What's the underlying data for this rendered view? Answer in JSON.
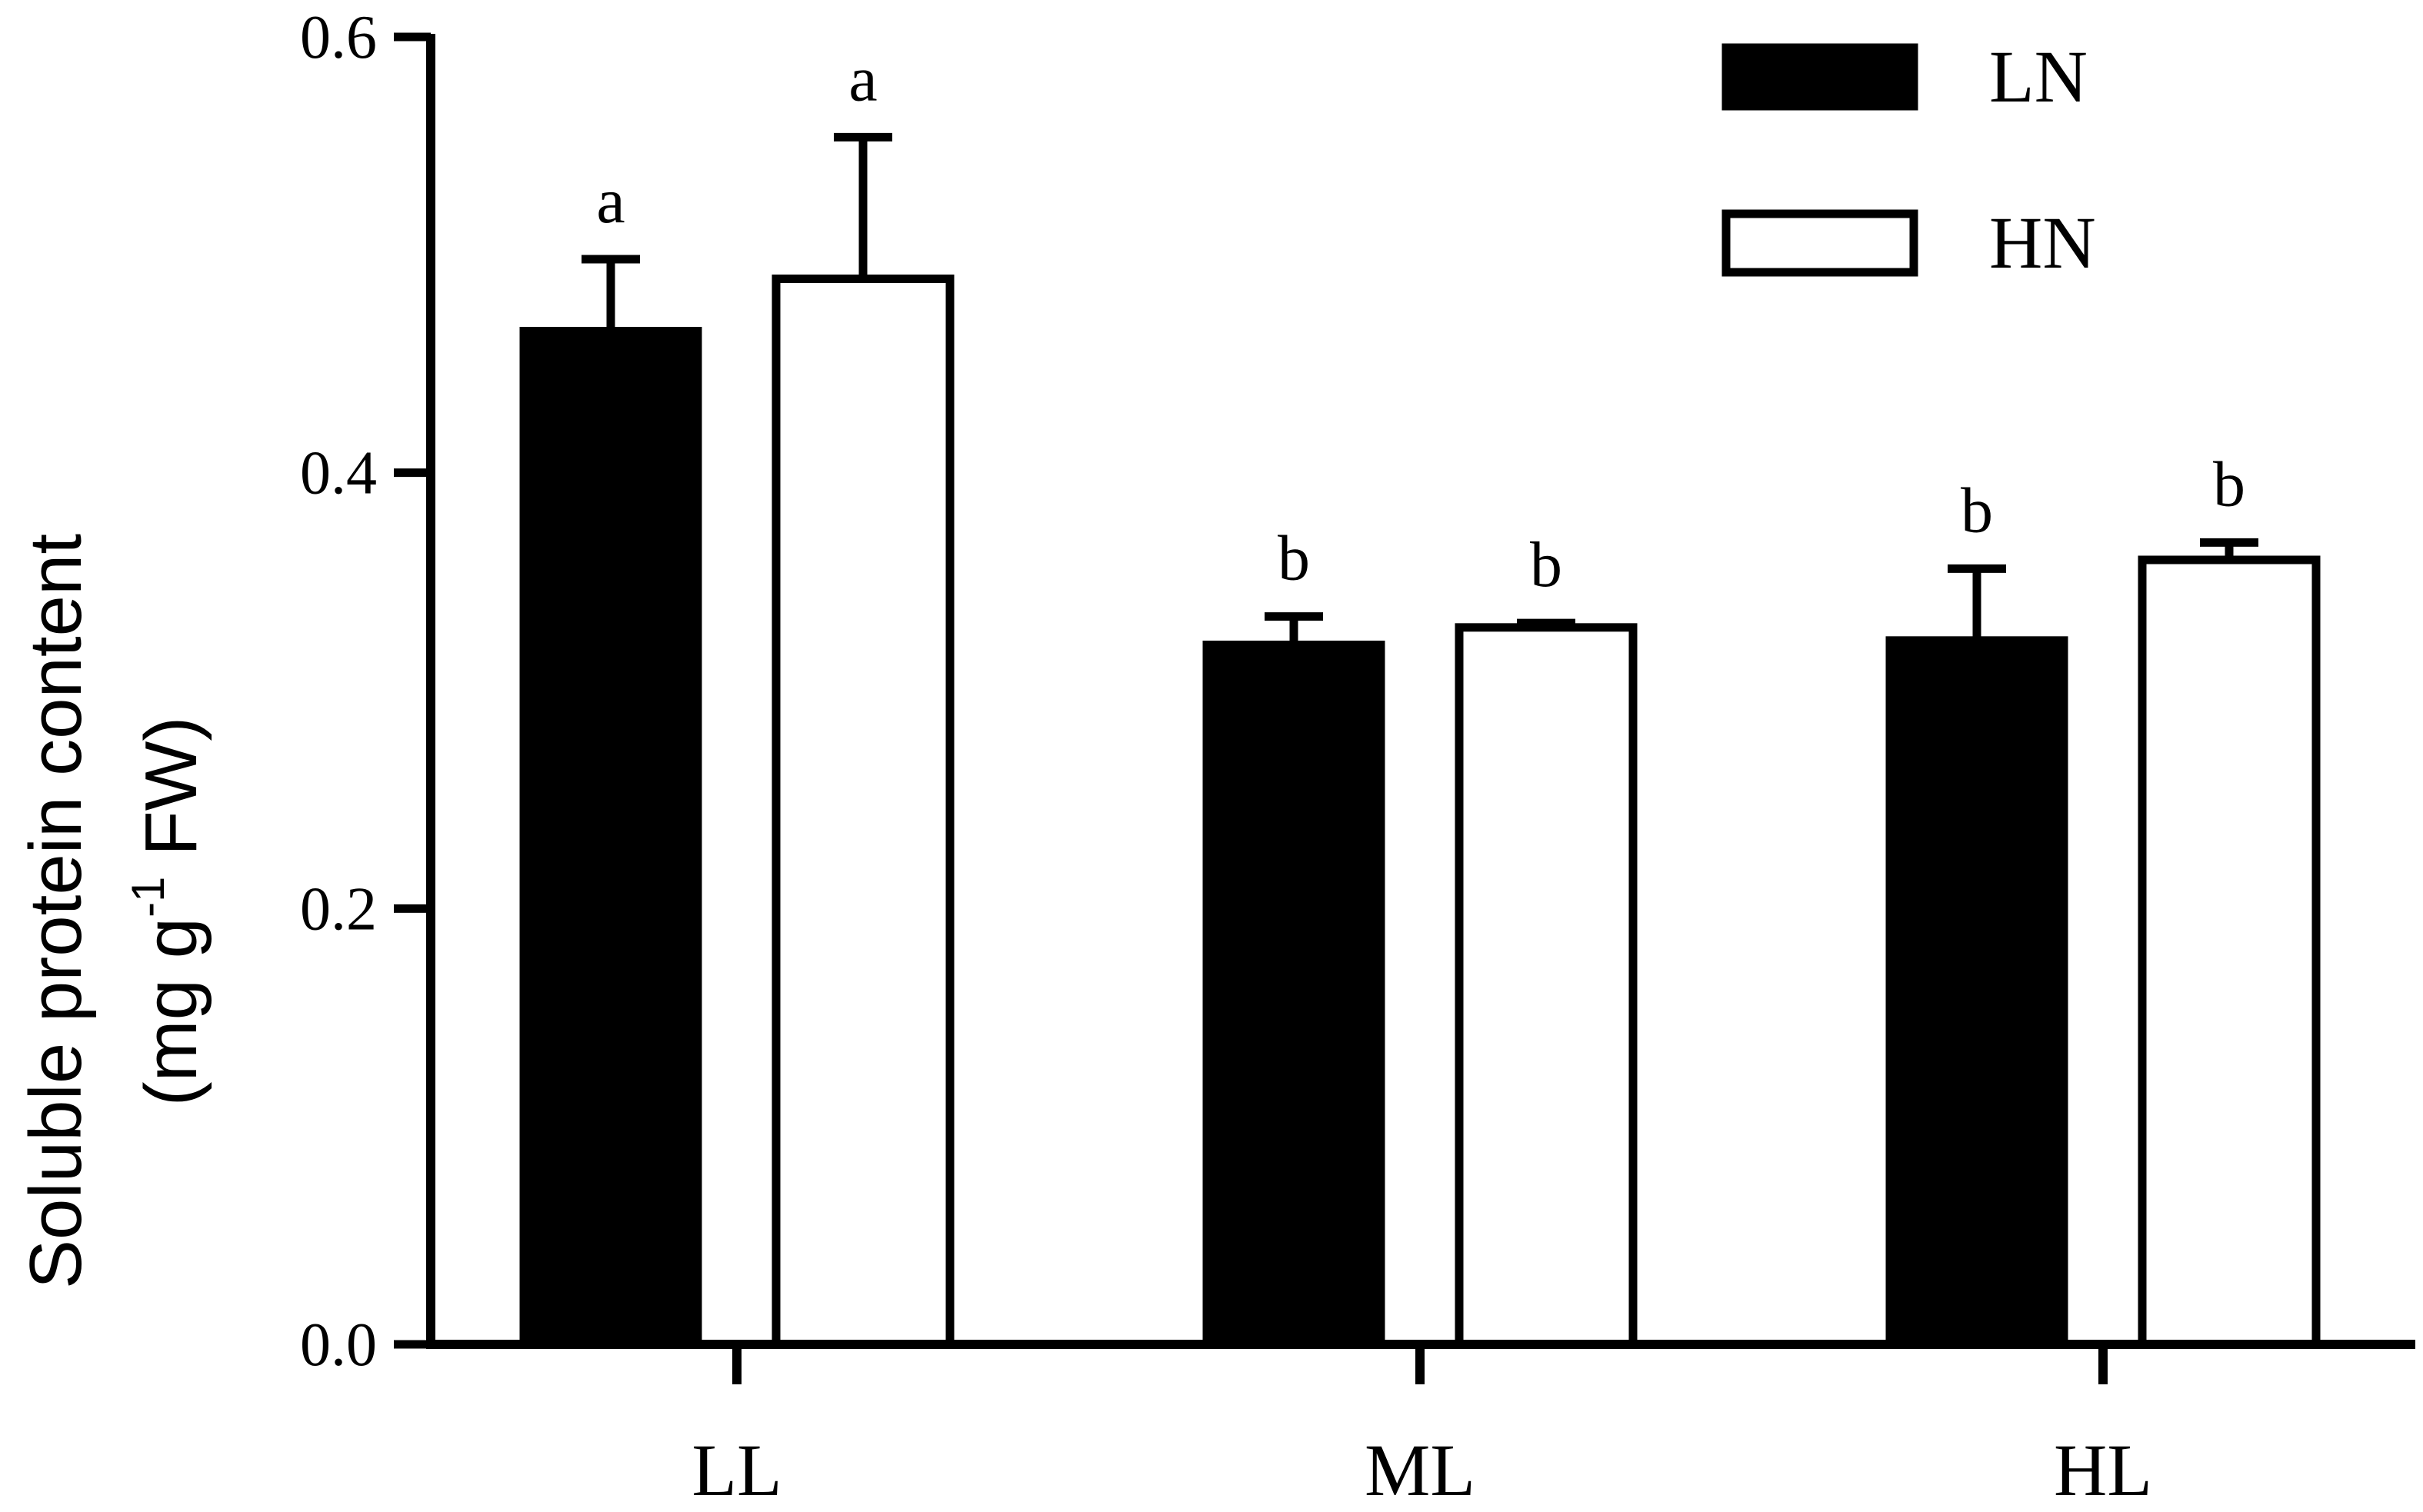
{
  "chart_data": {
    "type": "bar",
    "title": "",
    "xlabel": "",
    "ylabel": {
      "line1": "Soluble protein content",
      "line2_pre": "(mg g",
      "line2_sup": "-1",
      "line2_post": " FW)"
    },
    "ylim": [
      0,
      0.6
    ],
    "yticks": [
      "0.0",
      "0.2",
      "0.4",
      "0.6"
    ],
    "categories": [
      "LL",
      "ML",
      "HL"
    ],
    "legend_position": "top-right",
    "grid": false,
    "series": [
      {
        "name": "LN",
        "fill": "#000000",
        "values": [
          0.465,
          0.321,
          0.323
        ],
        "errors": [
          0.033,
          0.013,
          0.033
        ],
        "letters": [
          "a",
          "b",
          "b"
        ]
      },
      {
        "name": "HN",
        "fill": "#ffffff",
        "values": [
          0.489,
          0.329,
          0.36
        ],
        "errors": [
          0.065,
          0.002,
          0.008
        ],
        "letters": [
          "a",
          "b",
          "b"
        ]
      }
    ]
  }
}
